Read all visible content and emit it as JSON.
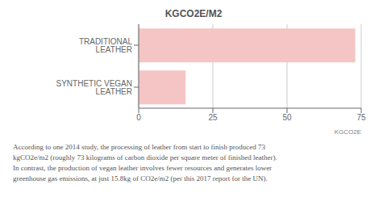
{
  "chart_data": {
    "type": "bar",
    "orientation": "horizontal",
    "title": "KGCO2E/M2",
    "categories": [
      "TRADITIONAL LEATHER",
      "SYNTHETIC VEGAN LEATHER"
    ],
    "values": [
      73,
      15.8
    ],
    "color": "#f5c5c5",
    "xlim": [
      0,
      75
    ],
    "xticks": [
      0,
      25,
      50,
      75
    ],
    "grid": true,
    "annotations": [
      "KGCO2E",
      "According to one 2014 study, the processing of leather from start to finish produced 73\nkgCO2e/m2 (roughly 73 kilograms of carbon dioxide per square meter of finished leather).\nIn contrast, the production of vegan leather involves fewer resources and generates lower\ngreenhouse gas emissions, at just 15.8kg of CO2e/m2 (per this 2017 report for the UN)."
    ]
  }
}
